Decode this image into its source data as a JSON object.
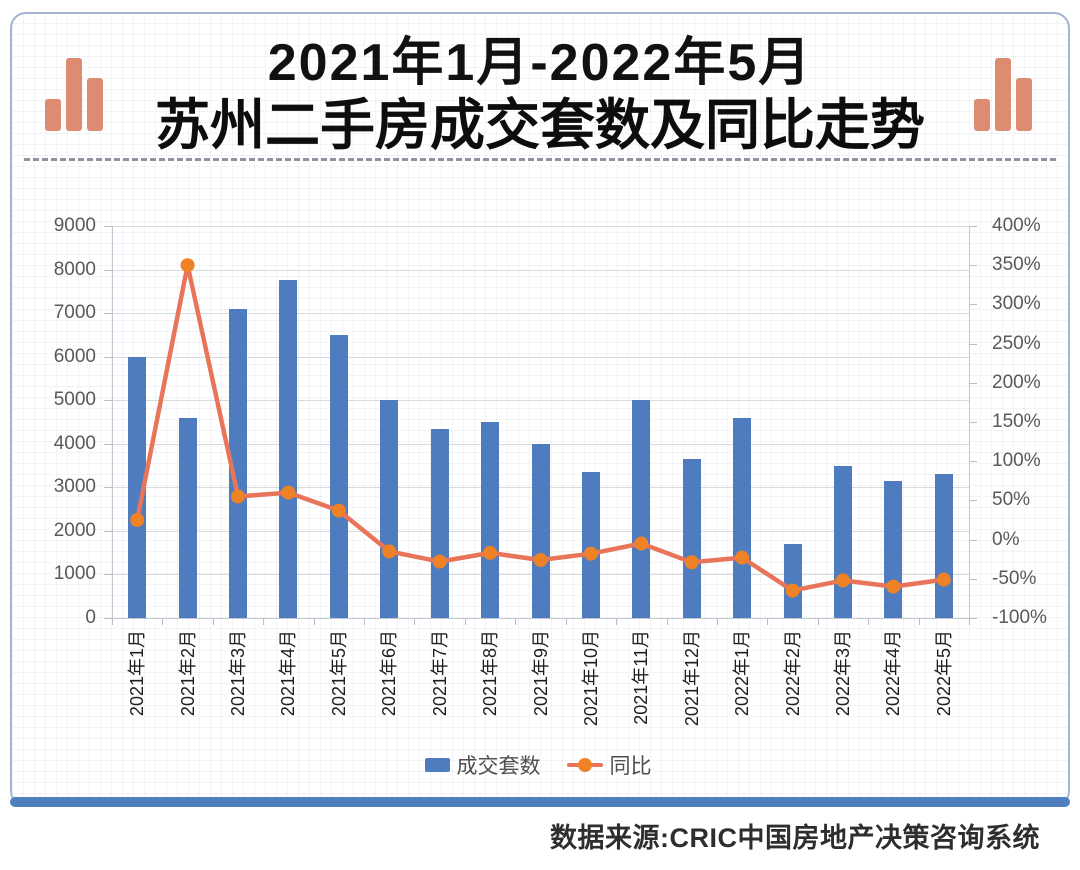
{
  "title": {
    "line1": "2021年1月-2022年5月",
    "line2": "苏州二手房成交套数及同比走势"
  },
  "legend": {
    "bars_label": "成交套数",
    "line_label": "同比"
  },
  "footer": {
    "source_text": "数据来源:CRIC中国房地产决策咨询系统"
  },
  "colors": {
    "bar": "#4e7cbe",
    "line": "#e8755a",
    "marker": "#ef8126",
    "icon_bar": "#dd8c72",
    "card_border": "#a6b3d4",
    "bottom_bar": "#4e7fbf",
    "grid": "#d7dade",
    "axis_text": "#595959",
    "x_label_text": "#1f1f1f"
  },
  "chart_data": {
    "type": "bar",
    "subtype": "dual-axis bar + line combo",
    "title": "2021年1月-2022年5月 苏州二手房成交套数及同比走势",
    "categories": [
      "2021年1月",
      "2021年2月",
      "2021年3月",
      "2021年4月",
      "2021年5月",
      "2021年6月",
      "2021年7月",
      "2021年8月",
      "2021年9月",
      "2021年10月",
      "2021年11月",
      "2021年12月",
      "2022年1月",
      "2022年2月",
      "2022年3月",
      "2022年4月",
      "2022年5月"
    ],
    "series": [
      {
        "name": "成交套数",
        "type": "bar",
        "axis": "left",
        "values": [
          6000,
          4600,
          7100,
          7750,
          6500,
          5000,
          4350,
          4500,
          4000,
          3350,
          5000,
          3650,
          4600,
          1700,
          3500,
          3150,
          3300
        ]
      },
      {
        "name": "同比",
        "type": "line",
        "axis": "right",
        "unit": "%",
        "values": [
          25,
          350,
          55,
          60,
          37,
          -15,
          -28,
          -17,
          -26,
          -18,
          -5,
          -29,
          -23,
          -65,
          -52,
          -60,
          -51
        ]
      }
    ],
    "left_axis": {
      "min": 0,
      "max": 9000,
      "step": 1000,
      "tick_labels": [
        "9000",
        "8000",
        "7000",
        "6000",
        "5000",
        "4000",
        "3000",
        "2000",
        "1000",
        "0"
      ]
    },
    "right_axis": {
      "min": -100,
      "max": 400,
      "step": 50,
      "tick_labels": [
        "400%",
        "350%",
        "300%",
        "250%",
        "200%",
        "150%",
        "100%",
        "50%",
        "0%",
        "-50%",
        "-100%"
      ]
    },
    "grid": "horizontal major gridlines on left axis",
    "legend_position": "bottom center",
    "x_label_rotation": -90
  }
}
